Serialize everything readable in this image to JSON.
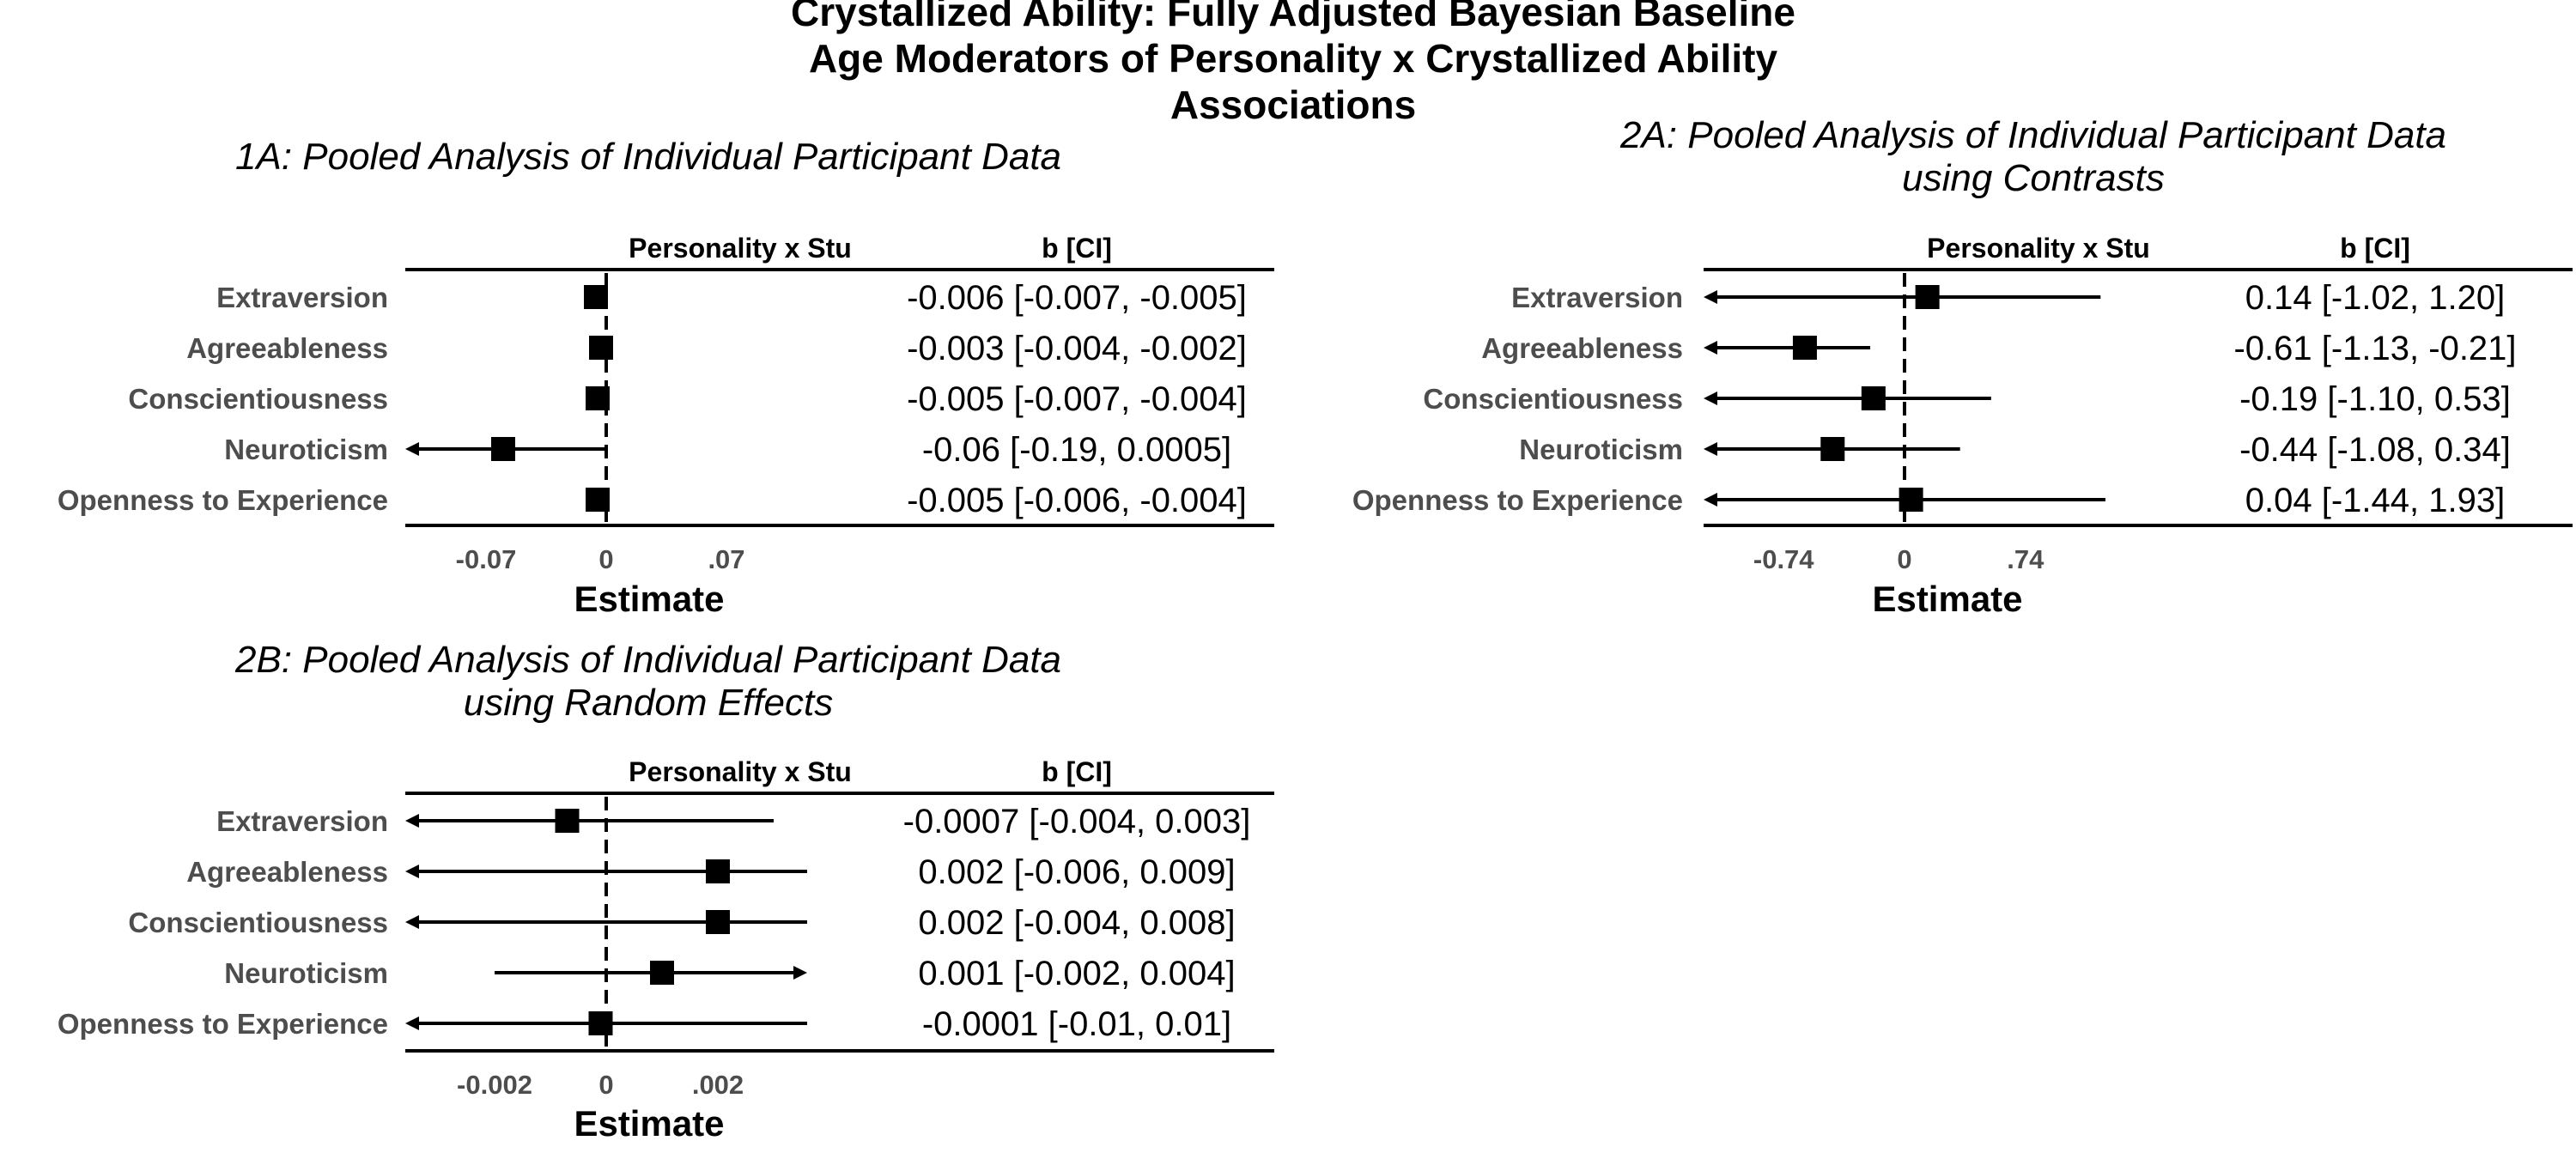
{
  "figure": {
    "title_lines": [
      "Crystallized Ability: Fully Adjusted Bayesian Baseline",
      "Age Moderators of Personality x Crystallized Ability",
      "Associations"
    ]
  },
  "chart_data": [
    {
      "type": "forest",
      "title_lines": [
        "1A: Pooled Analysis of Individual Participant Data"
      ],
      "column_headers": [
        "Personality x Study Baseline Age",
        "b [CI]"
      ],
      "xlabel": "Estimate",
      "xlim": [
        -0.117,
        0.117
      ],
      "xticks": [
        -0.07,
        0,
        0.07
      ],
      "xtick_labels": [
        "-0.07",
        "0",
        ".07"
      ],
      "reference_line": 0,
      "rows": [
        {
          "label": "Extraversion",
          "estimate": -0.006,
          "lower": -0.007,
          "upper": -0.005,
          "ci_text": "-0.006 [-0.007, -0.005]",
          "truncated_left": false,
          "truncated_right": false
        },
        {
          "label": "Agreeableness",
          "estimate": -0.003,
          "lower": -0.004,
          "upper": -0.002,
          "ci_text": "-0.003 [-0.004, -0.002]",
          "truncated_left": false,
          "truncated_right": false
        },
        {
          "label": "Conscientiousness",
          "estimate": -0.005,
          "lower": -0.007,
          "upper": -0.004,
          "ci_text": "-0.005 [-0.007, -0.004]",
          "truncated_left": false,
          "truncated_right": false
        },
        {
          "label": "Neuroticism",
          "estimate": -0.06,
          "lower": -0.19,
          "upper": 0.0005,
          "ci_text": "-0.06 [-0.19, 0.0005]",
          "truncated_left": true,
          "truncated_right": false
        },
        {
          "label": "Openness to Experience",
          "estimate": -0.005,
          "lower": -0.006,
          "upper": -0.004,
          "ci_text": "-0.005 [-0.006, -0.004]",
          "truncated_left": false,
          "truncated_right": false
        }
      ]
    },
    {
      "type": "forest",
      "title_lines": [
        "2A: Pooled Analysis of Individual Participant Data",
        "using Contrasts"
      ],
      "column_headers": [
        "Personality x Study Baseline Age",
        "b [CI]"
      ],
      "xlabel": "Estimate",
      "xlim": [
        -1.23,
        1.23
      ],
      "xticks": [
        -0.74,
        0,
        0.74
      ],
      "xtick_labels": [
        "-0.74",
        "0",
        ".74"
      ],
      "reference_line": 0,
      "rows": [
        {
          "label": "Extraversion",
          "estimate": 0.14,
          "lower": -1.02,
          "upper": 1.2,
          "ci_text": "0.14 [-1.02, 1.20]",
          "truncated_left": true,
          "truncated_right": false
        },
        {
          "label": "Agreeableness",
          "estimate": -0.61,
          "lower": -1.13,
          "upper": -0.21,
          "ci_text": "-0.61 [-1.13, -0.21]",
          "truncated_left": true,
          "truncated_right": false
        },
        {
          "label": "Conscientiousness",
          "estimate": -0.19,
          "lower": -1.1,
          "upper": 0.53,
          "ci_text": "-0.19 [-1.10, 0.53]",
          "truncated_left": true,
          "truncated_right": false
        },
        {
          "label": "Neuroticism",
          "estimate": -0.44,
          "lower": -1.08,
          "upper": 0.34,
          "ci_text": "-0.44 [-1.08, 0.34]",
          "truncated_left": true,
          "truncated_right": false
        },
        {
          "label": "Openness to Experience",
          "estimate": 0.04,
          "lower": -1.44,
          "upper": 1.93,
          "ci_text": "0.04 [-1.44, 1.93]",
          "truncated_left": true,
          "truncated_right": false
        }
      ]
    },
    {
      "type": "forest",
      "title_lines": [
        "2B: Pooled Analysis of Individual Participant Data",
        "using Random Effects"
      ],
      "column_headers": [
        "Personality x Study Baseline Age",
        "b [CI]"
      ],
      "xlabel": "Estimate",
      "xlim": [
        -0.0036,
        0.0036
      ],
      "xticks": [
        -0.002,
        0,
        0.002
      ],
      "xtick_labels": [
        "-0.002",
        "0",
        ".002"
      ],
      "reference_line": 0,
      "rows": [
        {
          "label": "Extraversion",
          "estimate": -0.0007,
          "lower": -0.004,
          "upper": 0.003,
          "ci_text": "-0.0007 [-0.004, 0.003]",
          "truncated_left": true,
          "truncated_right": false
        },
        {
          "label": "Agreeableness",
          "estimate": 0.002,
          "lower": -0.006,
          "upper": 0.009,
          "ci_text": "0.002 [-0.006, 0.009]",
          "truncated_left": true,
          "truncated_right": false
        },
        {
          "label": "Conscientiousness",
          "estimate": 0.002,
          "lower": -0.004,
          "upper": 0.008,
          "ci_text": "0.002 [-0.004, 0.008]",
          "truncated_left": true,
          "truncated_right": false
        },
        {
          "label": "Neuroticism",
          "estimate": 0.001,
          "lower": -0.002,
          "upper": 0.004,
          "ci_text": "0.001 [-0.002, 0.004]",
          "truncated_left": false,
          "truncated_right": true
        },
        {
          "label": "Openness to Experience",
          "estimate": -0.0001,
          "lower": -0.01,
          "upper": 0.01,
          "ci_text": "-0.0001 [-0.01, 0.01]",
          "truncated_left": true,
          "truncated_right": false
        }
      ]
    }
  ]
}
